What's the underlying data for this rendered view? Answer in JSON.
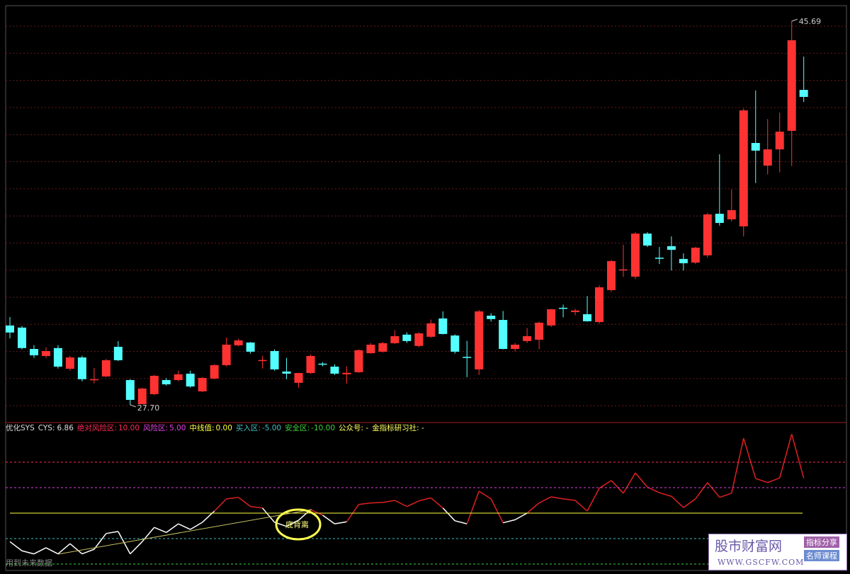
{
  "chart_data": [
    {
      "type": "candlestick",
      "categories": [
        null,
        null,
        null,
        null,
        null,
        null,
        null,
        null,
        null,
        null,
        null,
        null,
        null,
        null,
        null,
        null,
        null,
        null,
        null,
        null,
        null,
        null,
        null,
        null,
        null,
        null,
        null,
        null,
        null,
        null,
        null,
        null,
        null,
        null,
        null,
        null,
        null,
        null,
        null,
        null,
        null,
        null,
        null,
        null,
        null,
        null,
        null,
        null,
        null,
        null,
        null,
        null,
        null,
        null,
        null,
        null,
        null,
        null,
        null,
        null,
        null,
        null,
        null,
        null,
        null,
        null,
        null
      ],
      "open": [
        31.42,
        31.32,
        30.32,
        29.99,
        30.36,
        29.39,
        29.92,
        28.85,
        29.03,
        30.42,
        28.86,
        27.73,
        28.2,
        28.86,
        28.86,
        29.16,
        28.33,
        28.93,
        29.56,
        30.49,
        30.62,
        29.75,
        30.22,
        29.26,
        28.73,
        29.19,
        29.63,
        29.49,
        29.13,
        29.23,
        30.12,
        30.19,
        30.59,
        30.99,
        30.46,
        30.89,
        31.75,
        30.95,
        29.95,
        29.36,
        31.88,
        31.68,
        30.32,
        30.69,
        30.75,
        31.42,
        32.25,
        32.05,
        31.95,
        31.58,
        33.08,
        34.0,
        33.71,
        35.73,
        34.6,
        35.14,
        34.54,
        34.37,
        34.71,
        36.66,
        36.4,
        36.07,
        39.98,
        38.92,
        39.68,
        40.55,
        42.47
      ],
      "high": [
        31.82,
        31.4,
        30.5,
        30.4,
        30.5,
        30.0,
        30.0,
        29.43,
        29.85,
        30.69,
        28.9,
        28.5,
        29.1,
        28.95,
        29.3,
        29.3,
        29.0,
        29.6,
        30.85,
        30.8,
        30.65,
        30.0,
        30.3,
        29.9,
        29.2,
        30.05,
        29.7,
        29.6,
        29.5,
        30.3,
        30.6,
        30.65,
        31.2,
        31.1,
        31.1,
        31.7,
        32.08,
        31.0,
        30.7,
        32.15,
        32.0,
        32.1,
        30.6,
        31.3,
        31.6,
        32.2,
        32.4,
        32.2,
        32.8,
        33.3,
        34.5,
        35.2,
        35.8,
        35.8,
        35.1,
        35.6,
        34.8,
        35.1,
        36.7,
        39.45,
        37.8,
        41.6,
        42.44,
        41.1,
        41.4,
        45.69,
        44.03
      ],
      "low": [
        30.82,
        30.3,
        29.9,
        29.9,
        29.4,
        29.3,
        28.8,
        28.7,
        29.0,
        29.75,
        27.7,
        27.73,
        28.15,
        28.6,
        28.8,
        28.5,
        28.3,
        28.9,
        29.5,
        30.45,
        30.1,
        29.4,
        29.3,
        28.9,
        28.5,
        29.15,
        29.5,
        29.1,
        28.7,
        29.2,
        30.1,
        30.15,
        30.55,
        30.6,
        30.4,
        30.85,
        31.0,
        30.1,
        29.0,
        29.1,
        31.6,
        30.3,
        30.2,
        30.6,
        30.3,
        31.35,
        31.8,
        31.9,
        31.6,
        31.5,
        33.0,
        33.7,
        33.6,
        35.1,
        34.3,
        34.0,
        34.0,
        34.3,
        34.6,
        36.1,
        36.3,
        35.6,
        38.1,
        38.5,
        38.6,
        38.9,
        41.9
      ],
      "close": [
        31.09,
        30.36,
        30.02,
        30.22,
        29.49,
        29.92,
        28.9,
        28.9,
        29.79,
        29.79,
        27.93,
        28.46,
        29.06,
        28.66,
        29.13,
        28.56,
        28.96,
        29.56,
        30.52,
        30.72,
        30.19,
        29.8,
        29.36,
        29.16,
        29.19,
        29.99,
        29.58,
        29.16,
        29.2,
        30.26,
        30.52,
        30.59,
        30.92,
        30.69,
        31.05,
        31.52,
        31.02,
        30.19,
        29.9,
        32.08,
        31.72,
        30.32,
        30.52,
        30.92,
        31.55,
        32.18,
        32.2,
        32.12,
        31.62,
        33.21,
        34.44,
        34.05,
        35.73,
        35.17,
        34.55,
        34.97,
        34.34,
        35.07,
        36.63,
        36.23,
        36.83,
        41.51,
        39.62,
        39.68,
        40.51,
        44.8,
        42.14
      ],
      "up_color": "#ff3232",
      "down_color": "#54ffff",
      "ylim": [
        27.1,
        46.42
      ],
      "annotations": [
        {
          "value": 45.69,
          "label": "45.69",
          "index": 65
        },
        {
          "value": 27.7,
          "label": "27.70",
          "index": 10
        }
      ]
    },
    {
      "type": "line",
      "title": "优化SYS",
      "series": [
        {
          "name": "CYS:",
          "values": [
            -5.6,
            -7.4,
            -8.0,
            -6.8,
            -8.0,
            -6.0,
            -8.0,
            -7.1,
            -4.0,
            -3.6,
            -8.0,
            -5.6,
            -2.8,
            -3.8,
            -2.1,
            -3.2,
            -1.8,
            0.4,
            2.8,
            3.1,
            1.3,
            1.0,
            -1.8,
            -2.6,
            -1.4,
            0.7,
            -0.4,
            -2.1,
            -1.7,
            1.7,
            2.0,
            2.1,
            2.5,
            1.3,
            2.4,
            3.0,
            1.0,
            -1.5,
            -2.1,
            4.3,
            2.8,
            -1.9,
            -1.3,
            0,
            2.0,
            3.2,
            2.8,
            2.5,
            0.4,
            4.9,
            6.4,
            3.9,
            7.9,
            5.1,
            4.0,
            3.3,
            1.1,
            2.8,
            6.0,
            3.1,
            3.9,
            14.7,
            6.8,
            6.0,
            6.9,
            15.5,
            6.86
          ],
          "color_above": "#e02020",
          "color_below": "#ffffff"
        }
      ],
      "levels": [
        {
          "name": "绝对风险区:",
          "value": 10,
          "label": "10.00",
          "color": "#ff2a55"
        },
        {
          "name": "风险区:",
          "value": 5,
          "label": "5.00",
          "color": "#e040e0"
        },
        {
          "name": "中线值:",
          "value": 0,
          "label": "0.00",
          "color": "#ffff40"
        },
        {
          "name": "买入区:",
          "value": -5,
          "label": "-5.00",
          "color": "#40c0c0"
        },
        {
          "name": "安全区:",
          "value": -10,
          "label": "-10.00",
          "color": "#40d040"
        }
      ],
      "notes": [
        "公众号: -",
        "金指标研习社: -"
      ],
      "ylim": [
        -11.25,
        17.64
      ],
      "annotations": [
        "底背离",
        "用到未来数据"
      ]
    }
  ],
  "watermark": {
    "title": "股市财富网",
    "tags": [
      "指标分享",
      "名师课程"
    ],
    "url": "WWW.GSCFW.COM"
  }
}
